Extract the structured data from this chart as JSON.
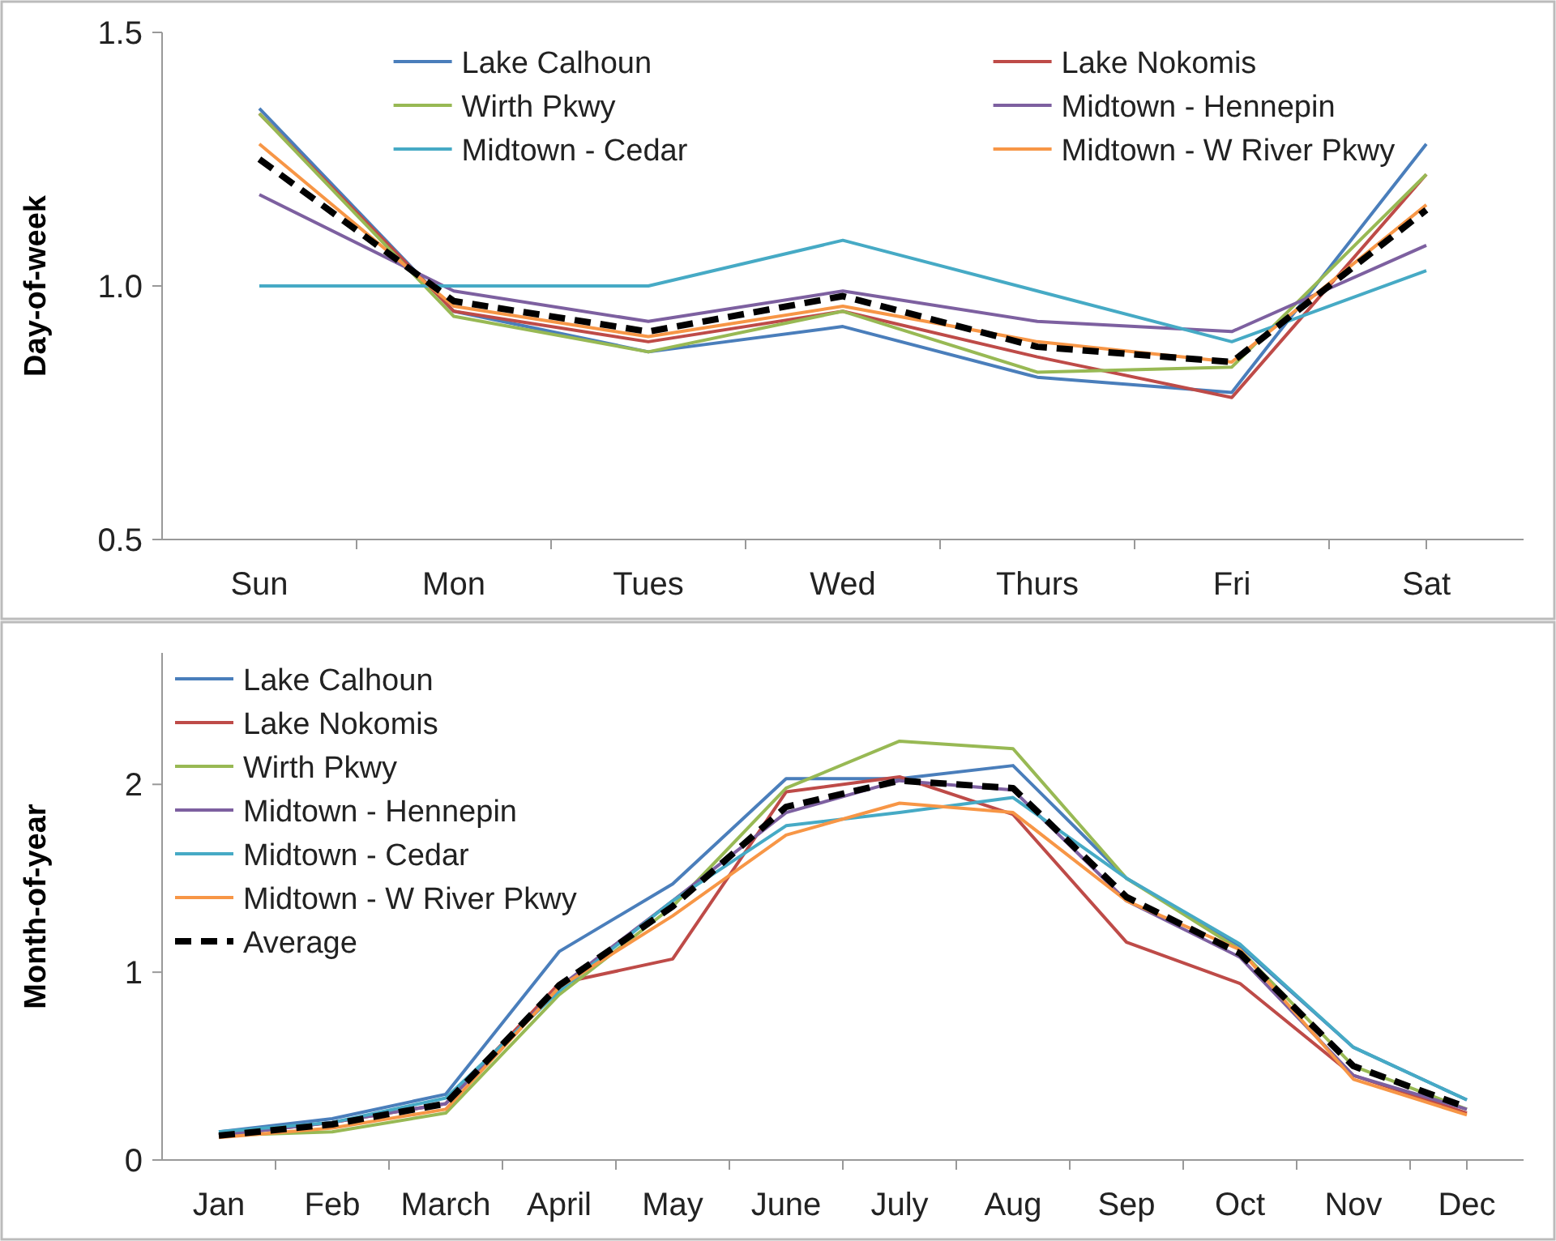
{
  "chart_data": [
    {
      "type": "line",
      "ylabel": "Day-of-week",
      "categories": [
        "Sun",
        "Mon",
        "Tues",
        "Wed",
        "Thurs",
        "Fri",
        "Sat"
      ],
      "ylim": [
        0.5,
        1.5
      ],
      "yticks": [
        {
          "value": 0.5,
          "label": "0.5"
        },
        {
          "value": 1,
          "label": "1.0"
        },
        {
          "value": 1.5,
          "label": "1.5"
        }
      ],
      "legend": "top",
      "series": [
        {
          "name": "Lake Calhoun",
          "color": "#4a7ebb",
          "values": [
            1.35,
            0.95,
            0.87,
            0.92,
            0.82,
            0.79,
            1.28
          ]
        },
        {
          "name": "Lake Nokomis",
          "color": "#be4b48",
          "values": [
            1.34,
            0.95,
            0.89,
            0.95,
            0.86,
            0.78,
            1.22
          ]
        },
        {
          "name": "Wirth Pkwy",
          "color": "#98b954",
          "values": [
            1.34,
            0.94,
            0.87,
            0.95,
            0.83,
            0.84,
            1.22
          ]
        },
        {
          "name": "Midtown - Hennepin",
          "color": "#7d60a0",
          "values": [
            1.18,
            0.99,
            0.93,
            0.99,
            0.93,
            0.91,
            1.08
          ]
        },
        {
          "name": "Midtown - Cedar",
          "color": "#46aac5",
          "values": [
            1.0,
            1.0,
            1.0,
            1.09,
            0.99,
            0.89,
            1.03
          ]
        },
        {
          "name": "Midtown - W River Pkwy",
          "color": "#f79646",
          "values": [
            1.28,
            0.96,
            0.9,
            0.96,
            0.89,
            0.85,
            1.16
          ]
        },
        {
          "color": "#000000",
          "line_style": "dashed",
          "values": [
            1.25,
            0.97,
            0.91,
            0.98,
            0.88,
            0.85,
            1.15
          ]
        }
      ]
    },
    {
      "type": "line",
      "ylabel": "Month-of-year",
      "categories": [
        "Jan",
        "Feb",
        "March",
        "April",
        "May",
        "June",
        "July",
        "Aug",
        "Sep",
        "Oct",
        "Nov",
        "Dec"
      ],
      "ylim": [
        0,
        2.7
      ],
      "yticks": [
        0,
        1,
        2
      ],
      "legend": "top left",
      "series": [
        {
          "name": "Lake Calhoun",
          "color": "#4a7ebb",
          "values": [
            0.15,
            0.22,
            0.35,
            1.11,
            1.47,
            2.03,
            2.03,
            2.1,
            1.5,
            1.14,
            0.6,
            0.32
          ]
        },
        {
          "name": "Lake Nokomis",
          "color": "#be4b48",
          "values": [
            0.13,
            0.2,
            0.3,
            0.94,
            1.07,
            1.96,
            2.04,
            1.84,
            1.16,
            0.94,
            0.45,
            0.25
          ]
        },
        {
          "name": "Wirth Pkwy",
          "color": "#98b954",
          "values": [
            0.13,
            0.15,
            0.25,
            0.88,
            1.35,
            1.98,
            2.23,
            2.19,
            1.5,
            1.12,
            0.5,
            0.27
          ]
        },
        {
          "name": "Midtown - Hennepin",
          "color": "#7d60a0",
          "values": [
            0.13,
            0.2,
            0.3,
            0.92,
            1.38,
            1.85,
            2.02,
            1.97,
            1.38,
            1.08,
            0.45,
            0.27
          ]
        },
        {
          "name": "Midtown - Cedar",
          "color": "#46aac5",
          "values": [
            0.15,
            0.2,
            0.33,
            0.9,
            1.38,
            1.78,
            1.85,
            1.93,
            1.5,
            1.15,
            0.6,
            0.32
          ]
        },
        {
          "name": "Midtown - W River Pkwy",
          "color": "#f79646",
          "values": [
            0.12,
            0.17,
            0.27,
            0.92,
            1.3,
            1.73,
            1.9,
            1.85,
            1.38,
            1.12,
            0.43,
            0.24
          ]
        },
        {
          "name": "Average",
          "color": "#000000",
          "line_style": "dashed",
          "values": [
            0.13,
            0.19,
            0.3,
            0.93,
            1.35,
            1.88,
            2.02,
            1.98,
            1.4,
            1.1,
            0.5,
            0.28
          ]
        }
      ]
    }
  ]
}
